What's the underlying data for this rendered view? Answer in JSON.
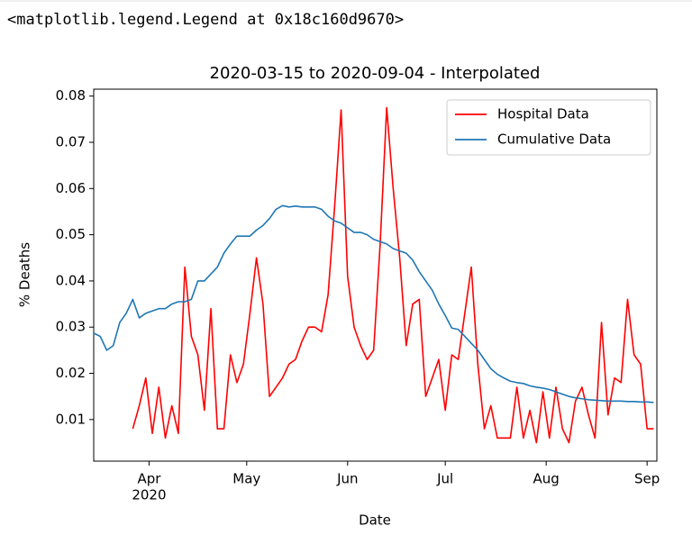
{
  "output_text": "<matplotlib.legend.Legend at 0x18c160d9670>",
  "chart_data": {
    "type": "line",
    "title": "2020-03-15 to 2020-09-04 - Interpolated",
    "x_label": "Date",
    "y_label": "% Deaths",
    "x": [
      "2020-03-15",
      "2020-03-17",
      "2020-03-19",
      "2020-03-21",
      "2020-03-23",
      "2020-03-25",
      "2020-03-27",
      "2020-03-29",
      "2020-03-31",
      "2020-04-02",
      "2020-04-04",
      "2020-04-06",
      "2020-04-08",
      "2020-04-10",
      "2020-04-12",
      "2020-04-14",
      "2020-04-16",
      "2020-04-18",
      "2020-04-20",
      "2020-04-22",
      "2020-04-24",
      "2020-04-26",
      "2020-04-28",
      "2020-04-30",
      "2020-05-02",
      "2020-05-04",
      "2020-05-06",
      "2020-05-08",
      "2020-05-10",
      "2020-05-12",
      "2020-05-14",
      "2020-05-16",
      "2020-05-18",
      "2020-05-20",
      "2020-05-22",
      "2020-05-24",
      "2020-05-26",
      "2020-05-28",
      "2020-05-30",
      "2020-06-01",
      "2020-06-03",
      "2020-06-05",
      "2020-06-07",
      "2020-06-09",
      "2020-06-11",
      "2020-06-13",
      "2020-06-15",
      "2020-06-17",
      "2020-06-19",
      "2020-06-21",
      "2020-06-23",
      "2020-06-25",
      "2020-06-27",
      "2020-06-29",
      "2020-07-01",
      "2020-07-03",
      "2020-07-05",
      "2020-07-07",
      "2020-07-09",
      "2020-07-11",
      "2020-07-13",
      "2020-07-15",
      "2020-07-17",
      "2020-07-19",
      "2020-07-21",
      "2020-07-23",
      "2020-07-25",
      "2020-07-27",
      "2020-07-29",
      "2020-07-31",
      "2020-08-02",
      "2020-08-04",
      "2020-08-06",
      "2020-08-08",
      "2020-08-10",
      "2020-08-12",
      "2020-08-14",
      "2020-08-16",
      "2020-08-18",
      "2020-08-20",
      "2020-08-22",
      "2020-08-24",
      "2020-08-26",
      "2020-08-28",
      "2020-08-30",
      "2020-09-01",
      "2020-09-03"
    ],
    "series": [
      {
        "name": "Hospital Data",
        "color": "#ff0000",
        "values": [
          null,
          null,
          null,
          null,
          null,
          null,
          0.008,
          0.013,
          0.019,
          0.007,
          0.017,
          0.006,
          0.013,
          0.007,
          0.043,
          0.028,
          0.024,
          0.012,
          0.034,
          0.008,
          0.008,
          0.024,
          0.018,
          0.022,
          0.033,
          0.045,
          0.035,
          0.015,
          0.017,
          0.019,
          0.022,
          0.023,
          0.027,
          0.03,
          0.03,
          0.029,
          0.037,
          0.056,
          0.077,
          0.041,
          0.03,
          0.026,
          0.023,
          0.025,
          0.048,
          0.0775,
          0.06,
          0.045,
          0.026,
          0.035,
          0.036,
          0.015,
          0.019,
          0.023,
          0.012,
          0.024,
          0.023,
          0.033,
          0.043,
          0.022,
          0.008,
          0.013,
          0.006,
          0.006,
          0.006,
          0.017,
          0.006,
          0.012,
          0.005,
          0.016,
          0.006,
          0.017,
          0.008,
          0.005,
          0.014,
          0.017,
          0.011,
          0.006,
          0.031,
          0.011,
          0.019,
          0.018,
          0.036,
          0.024,
          0.022,
          0.008,
          0.008
        ]
      },
      {
        "name": "Cumulative Data",
        "color": "#1f77b4",
        "values": [
          0.0287,
          0.028,
          0.025,
          0.026,
          0.031,
          0.033,
          0.036,
          0.032,
          0.033,
          0.0335,
          0.034,
          0.034,
          0.035,
          0.0355,
          0.0355,
          0.036,
          0.04,
          0.04,
          0.0415,
          0.043,
          0.046,
          0.048,
          0.0497,
          0.0497,
          0.0497,
          0.051,
          0.052,
          0.0535,
          0.0555,
          0.0563,
          0.056,
          0.0562,
          0.056,
          0.056,
          0.056,
          0.0555,
          0.054,
          0.053,
          0.0525,
          0.0515,
          0.0505,
          0.0505,
          0.05,
          0.049,
          0.0485,
          0.048,
          0.047,
          0.0465,
          0.046,
          0.0445,
          0.042,
          0.04,
          0.038,
          0.035,
          0.0325,
          0.0298,
          0.0295,
          0.028,
          0.0265,
          0.025,
          0.023,
          0.021,
          0.0198,
          0.019,
          0.0183,
          0.018,
          0.0178,
          0.0173,
          0.017,
          0.0168,
          0.0165,
          0.016,
          0.0155,
          0.015,
          0.0147,
          0.0145,
          0.0143,
          0.0142,
          0.0141,
          0.014,
          0.014,
          0.014,
          0.0139,
          0.0139,
          0.0138,
          0.0138,
          0.0137
        ]
      }
    ],
    "xlim": [
      "2020-03-15",
      "2020-09-04"
    ],
    "xticks": [
      {
        "value": "2020-04-01",
        "label": "Apr"
      },
      {
        "value": "2020-05-01",
        "label": "May"
      },
      {
        "value": "2020-06-01",
        "label": "Jun"
      },
      {
        "value": "2020-07-01",
        "label": "Jul"
      },
      {
        "value": "2020-08-01",
        "label": "Aug"
      },
      {
        "value": "2020-09-01",
        "label": "Sep"
      }
    ],
    "year_label": "2020",
    "ylim": [
      0.001,
      0.0815
    ],
    "yticks": [
      0.01,
      0.02,
      0.03,
      0.04,
      0.05,
      0.06,
      0.07,
      0.08
    ],
    "legend": "upper right",
    "grid": false
  }
}
